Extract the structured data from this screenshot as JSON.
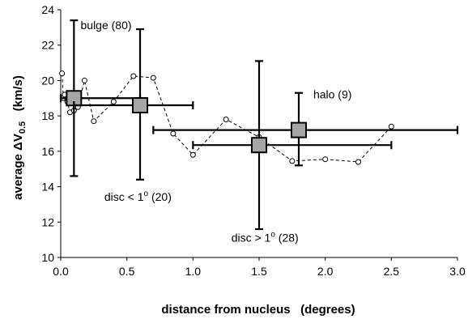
{
  "chart_data": {
    "type": "scatter",
    "xlabel": "distance from nucleus   (degrees)",
    "ylabel": {
      "main": "average ",
      "delta": "Δ",
      "v": "V",
      "sub": "0.5",
      "units": "   (km/s)"
    },
    "xlim": [
      0,
      3.0
    ],
    "ylim": [
      10,
      24
    ],
    "x_ticks": [
      "0.0",
      "0.5",
      "1.0",
      "1.5",
      "2.0",
      "2.5",
      "3.0"
    ],
    "y_ticks": [
      "10",
      "12",
      "14",
      "16",
      "18",
      "20",
      "22",
      "24"
    ],
    "grid": false,
    "series": [
      {
        "style": "dashed line with open circle markers",
        "points": [
          {
            "x": 0.01,
            "y": 20.4
          },
          {
            "x": 0.02,
            "y": 19.0
          },
          {
            "x": 0.03,
            "y": 19.2
          },
          {
            "x": 0.05,
            "y": 18.8
          },
          {
            "x": 0.07,
            "y": 18.2
          },
          {
            "x": 0.1,
            "y": 18.3
          },
          {
            "x": 0.13,
            "y": 18.5
          },
          {
            "x": 0.18,
            "y": 20.0
          },
          {
            "x": 0.25,
            "y": 17.7
          },
          {
            "x": 0.4,
            "y": 18.8
          },
          {
            "x": 0.55,
            "y": 20.25
          },
          {
            "x": 0.7,
            "y": 20.15
          },
          {
            "x": 0.85,
            "y": 17.0
          },
          {
            "x": 1.0,
            "y": 15.8
          },
          {
            "x": 1.25,
            "y": 17.8
          },
          {
            "x": 1.5,
            "y": 16.8
          },
          {
            "x": 1.75,
            "y": 15.45
          },
          {
            "x": 2.0,
            "y": 15.55
          },
          {
            "x": 2.25,
            "y": 15.4
          },
          {
            "x": 2.5,
            "y": 17.4
          }
        ]
      },
      {
        "style": "grey square markers with black horizontal and vertical error bars",
        "points": [
          {
            "x": 0.1,
            "y": 19.0,
            "x_err": [
              0.0,
              0.6
            ],
            "y_err": [
              14.6,
              23.4
            ]
          },
          {
            "x": 0.6,
            "y": 18.6,
            "x_err": [
              0.1,
              1.0
            ],
            "y_err": [
              14.4,
              22.9
            ]
          },
          {
            "x": 1.5,
            "y": 16.35,
            "x_err": [
              1.0,
              2.5
            ],
            "y_err": [
              11.6,
              21.1
            ]
          },
          {
            "x": 1.8,
            "y": 17.2,
            "x_err": [
              0.7,
              3.0
            ],
            "y_err": [
              15.2,
              19.3
            ]
          }
        ]
      }
    ],
    "annotations": [
      {
        "text": "bulge (80)",
        "x": 0.15,
        "y": 22.9
      },
      {
        "text": "halo  (9)",
        "x": 1.91,
        "y": 19.0
      },
      {
        "pre": "disc < 1",
        "sup": "o",
        "post": "  (20)",
        "x": 0.33,
        "y": 13.2
      },
      {
        "pre": "disc > 1",
        "sup": "o",
        "post": "  (28)",
        "x": 1.29,
        "y": 10.9
      }
    ]
  }
}
